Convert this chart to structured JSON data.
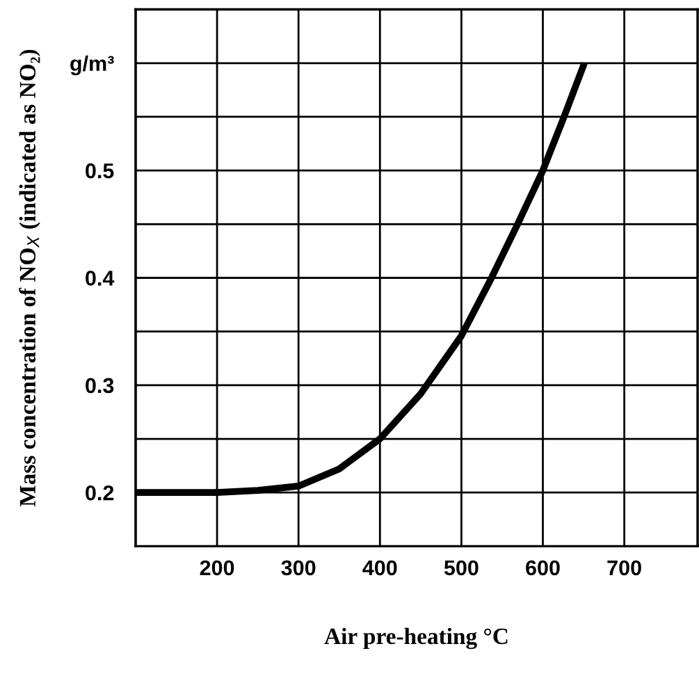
{
  "chart_data": {
    "type": "line",
    "xlabel": "Air pre-heating °C",
    "ylabel": "Mass concentration of NO$_{X}$ (indicated as NO₂)",
    "xlim": [
      100,
      790
    ],
    "ylim": [
      0.15,
      0.65
    ],
    "xticks": [
      {
        "value": 100,
        "label": null
      },
      200,
      300,
      400,
      500,
      600,
      700
    ],
    "yticks": [
      {
        "value": 0.15,
        "label": null
      },
      0.2,
      {
        "value": 0.25,
        "label": null
      },
      0.3,
      {
        "value": 0.35,
        "label": null
      },
      0.4,
      {
        "value": 0.45,
        "label": null
      },
      0.5,
      {
        "value": 0.55,
        "label": null
      },
      {
        "value": 0.6,
        "label": "g/m³"
      },
      {
        "value": 0.65,
        "label": null
      }
    ],
    "grid": true,
    "marker": "none",
    "line_style": "solid",
    "series": [
      {
        "color": "#000000",
        "x": [
          100,
          150,
          200,
          250,
          300,
          350,
          400,
          450,
          500,
          537,
          569,
          600,
          626,
          651
        ],
        "values": [
          0.2,
          0.2,
          0.2,
          0.202,
          0.206,
          0.222,
          0.25,
          0.292,
          0.346,
          0.4,
          0.45,
          0.5,
          0.55,
          0.6
        ]
      }
    ]
  }
}
